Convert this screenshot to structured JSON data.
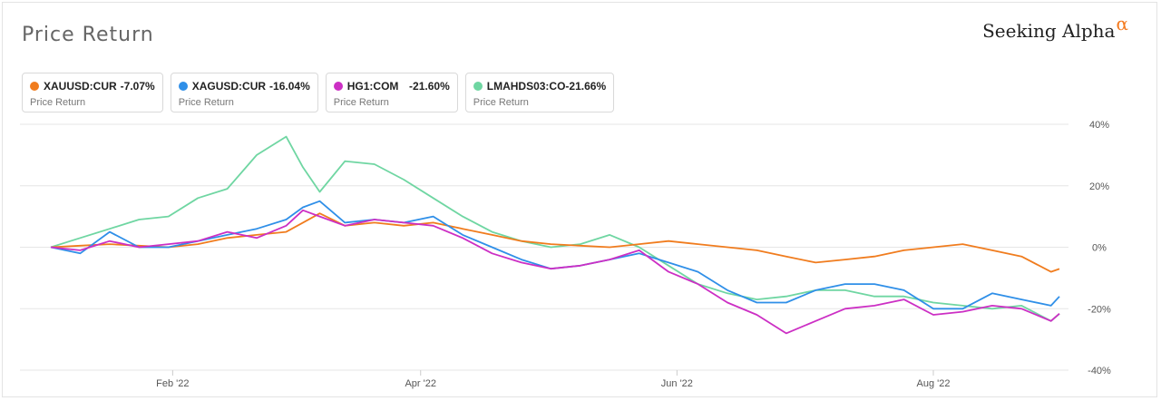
{
  "header": {
    "title": "Price Return",
    "brand": "Seeking Alpha",
    "brand_mark": "α"
  },
  "legend": [
    {
      "symbol": "XAUUSD:CUR",
      "value": "-7.07%",
      "sub": "Price Return",
      "color": "#f07c1e"
    },
    {
      "symbol": "XAGUSD:CUR",
      "value": "-16.04%",
      "sub": "Price Return",
      "color": "#2f8fe8"
    },
    {
      "symbol": "HG1:COM",
      "value": "-21.60%",
      "sub": "Price Return",
      "color": "#cc2fc4"
    },
    {
      "symbol": "LMAHDS03:CO",
      "value": "-21.66%",
      "sub": "Price Return",
      "color": "#6fd6a2"
    }
  ],
  "chart_data": {
    "type": "line",
    "title": "Price Return",
    "xlabel": "",
    "ylabel": "",
    "x_ticks": [
      "Feb '22",
      "Apr '22",
      "Jun '22",
      "Aug '22"
    ],
    "x_tick_dates": [
      "2022-02-01",
      "2022-04-01",
      "2022-06-01",
      "2022-08-01"
    ],
    "x_range": [
      "2022-01-03",
      "2022-08-31"
    ],
    "y_ticks": [
      40,
      20,
      0,
      -20,
      -40
    ],
    "y_tick_labels": [
      "40%",
      "20%",
      "0%",
      "-20%",
      "-40%"
    ],
    "ylim": [
      -40,
      40
    ],
    "y_axis_position": "right",
    "grid": "horizontal",
    "series": [
      {
        "name": "XAUUSD:CUR",
        "color": "#f07c1e",
        "x": [
          "2022-01-03",
          "2022-01-10",
          "2022-01-17",
          "2022-01-24",
          "2022-01-31",
          "2022-02-07",
          "2022-02-14",
          "2022-02-21",
          "2022-02-28",
          "2022-03-04",
          "2022-03-08",
          "2022-03-14",
          "2022-03-21",
          "2022-03-28",
          "2022-04-04",
          "2022-04-11",
          "2022-04-18",
          "2022-04-25",
          "2022-05-02",
          "2022-05-09",
          "2022-05-16",
          "2022-05-23",
          "2022-05-30",
          "2022-06-06",
          "2022-06-13",
          "2022-06-20",
          "2022-06-27",
          "2022-07-04",
          "2022-07-11",
          "2022-07-18",
          "2022-07-25",
          "2022-08-01",
          "2022-08-08",
          "2022-08-15",
          "2022-08-22",
          "2022-08-29",
          "2022-08-31"
        ],
        "y": [
          0,
          0.5,
          1,
          0.5,
          0,
          1,
          3,
          4,
          5,
          8,
          11,
          7,
          8,
          7,
          8,
          6,
          4,
          2,
          1,
          0.5,
          0,
          1,
          2,
          1,
          0,
          -1,
          -3,
          -5,
          -4,
          -3,
          -1,
          0,
          1,
          -1,
          -3,
          -8,
          -7.07
        ]
      },
      {
        "name": "XAGUSD:CUR",
        "color": "#2f8fe8",
        "x": [
          "2022-01-03",
          "2022-01-10",
          "2022-01-17",
          "2022-01-24",
          "2022-01-31",
          "2022-02-07",
          "2022-02-14",
          "2022-02-21",
          "2022-02-28",
          "2022-03-04",
          "2022-03-08",
          "2022-03-14",
          "2022-03-21",
          "2022-03-28",
          "2022-04-04",
          "2022-04-11",
          "2022-04-18",
          "2022-04-25",
          "2022-05-02",
          "2022-05-09",
          "2022-05-16",
          "2022-05-23",
          "2022-05-30",
          "2022-06-06",
          "2022-06-13",
          "2022-06-20",
          "2022-06-27",
          "2022-07-04",
          "2022-07-11",
          "2022-07-18",
          "2022-07-25",
          "2022-08-01",
          "2022-08-08",
          "2022-08-15",
          "2022-08-22",
          "2022-08-29",
          "2022-08-31"
        ],
        "y": [
          0,
          -2,
          5,
          0,
          0,
          2,
          4,
          6,
          9,
          13,
          15,
          8,
          9,
          8,
          10,
          4,
          0,
          -4,
          -7,
          -6,
          -4,
          -2,
          -5,
          -8,
          -14,
          -18,
          -18,
          -14,
          -12,
          -12,
          -14,
          -20,
          -20,
          -15,
          -17,
          -19,
          -16.04
        ]
      },
      {
        "name": "HG1:COM",
        "color": "#cc2fc4",
        "x": [
          "2022-01-03",
          "2022-01-10",
          "2022-01-17",
          "2022-01-24",
          "2022-01-31",
          "2022-02-07",
          "2022-02-14",
          "2022-02-21",
          "2022-02-28",
          "2022-03-04",
          "2022-03-08",
          "2022-03-14",
          "2022-03-21",
          "2022-03-28",
          "2022-04-04",
          "2022-04-11",
          "2022-04-18",
          "2022-04-25",
          "2022-05-02",
          "2022-05-09",
          "2022-05-16",
          "2022-05-23",
          "2022-05-30",
          "2022-06-06",
          "2022-06-13",
          "2022-06-20",
          "2022-06-27",
          "2022-07-04",
          "2022-07-11",
          "2022-07-18",
          "2022-07-25",
          "2022-08-01",
          "2022-08-08",
          "2022-08-15",
          "2022-08-22",
          "2022-08-29",
          "2022-08-31"
        ],
        "y": [
          0,
          -1,
          2,
          0,
          1,
          2,
          5,
          3,
          7,
          12,
          10,
          7,
          9,
          8,
          7,
          3,
          -2,
          -5,
          -7,
          -6,
          -4,
          -1,
          -8,
          -12,
          -18,
          -22,
          -28,
          -24,
          -20,
          -19,
          -17,
          -22,
          -21,
          -19,
          -20,
          -24,
          -21.6
        ]
      },
      {
        "name": "LMAHDS03:CO",
        "color": "#6fd6a2",
        "x": [
          "2022-01-03",
          "2022-01-10",
          "2022-01-17",
          "2022-01-24",
          "2022-01-31",
          "2022-02-07",
          "2022-02-14",
          "2022-02-21",
          "2022-02-28",
          "2022-03-04",
          "2022-03-08",
          "2022-03-14",
          "2022-03-21",
          "2022-03-28",
          "2022-04-04",
          "2022-04-11",
          "2022-04-18",
          "2022-04-25",
          "2022-05-02",
          "2022-05-09",
          "2022-05-16",
          "2022-05-23",
          "2022-05-30",
          "2022-06-06",
          "2022-06-13",
          "2022-06-20",
          "2022-06-27",
          "2022-07-04",
          "2022-07-11",
          "2022-07-18",
          "2022-07-25",
          "2022-08-01",
          "2022-08-08",
          "2022-08-15",
          "2022-08-22",
          "2022-08-29",
          "2022-08-31"
        ],
        "y": [
          0,
          3,
          6,
          9,
          10,
          16,
          19,
          30,
          36,
          26,
          18,
          28,
          27,
          22,
          16,
          10,
          5,
          2,
          0,
          1,
          4,
          0,
          -6,
          -12,
          -15,
          -17,
          -16,
          -14,
          -14,
          -16,
          -16,
          -18,
          -19,
          -20,
          -19,
          -24,
          -21.66
        ]
      }
    ]
  }
}
